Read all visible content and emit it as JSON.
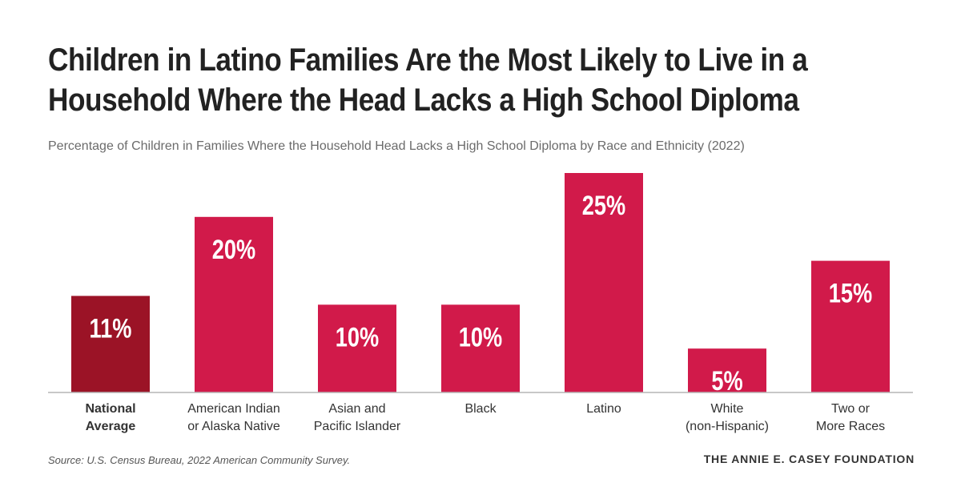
{
  "title_lines": [
    "Children in Latino Families Are the Most Likely to Live in a",
    "Household Where the Head Lacks a High School Diploma"
  ],
  "subtitle": "Percentage of Children in Families Where the Household Head Lacks a High School Diploma by Race and Ethnicity (2022)",
  "source": "Source: U.S. Census Bureau, 2022 American Community Survey.",
  "logo_text": "THE ANNIE E. CASEY FOUNDATION",
  "colors": {
    "bar": "#d11a4a",
    "highlight_bar": "#9b1326",
    "baseline": "#b5b5b5",
    "bar_label": "#ffffff"
  },
  "chart_data": {
    "type": "bar",
    "title": "Children in Latino Families Are the Most Likely to Live in a Household Where the Head Lacks a High School Diploma",
    "subtitle": "Percentage of Children in Families Where the Household Head Lacks a High School Diploma by Race and Ethnicity (2022)",
    "categories": [
      [
        "National",
        "Average"
      ],
      [
        "American Indian",
        "or Alaska Native"
      ],
      [
        "Asian and",
        "Pacific Islander"
      ],
      [
        "Black"
      ],
      [
        "Latino"
      ],
      [
        "White",
        "(non-Hispanic)"
      ],
      [
        "Two or",
        "More Races"
      ]
    ],
    "values": [
      11,
      20,
      10,
      10,
      25,
      5,
      15
    ],
    "value_labels": [
      "11%",
      "20%",
      "10%",
      "10%",
      "25%",
      "5%",
      "15%"
    ],
    "highlight_index": 0,
    "ylim": [
      0,
      25
    ],
    "grid": false
  }
}
